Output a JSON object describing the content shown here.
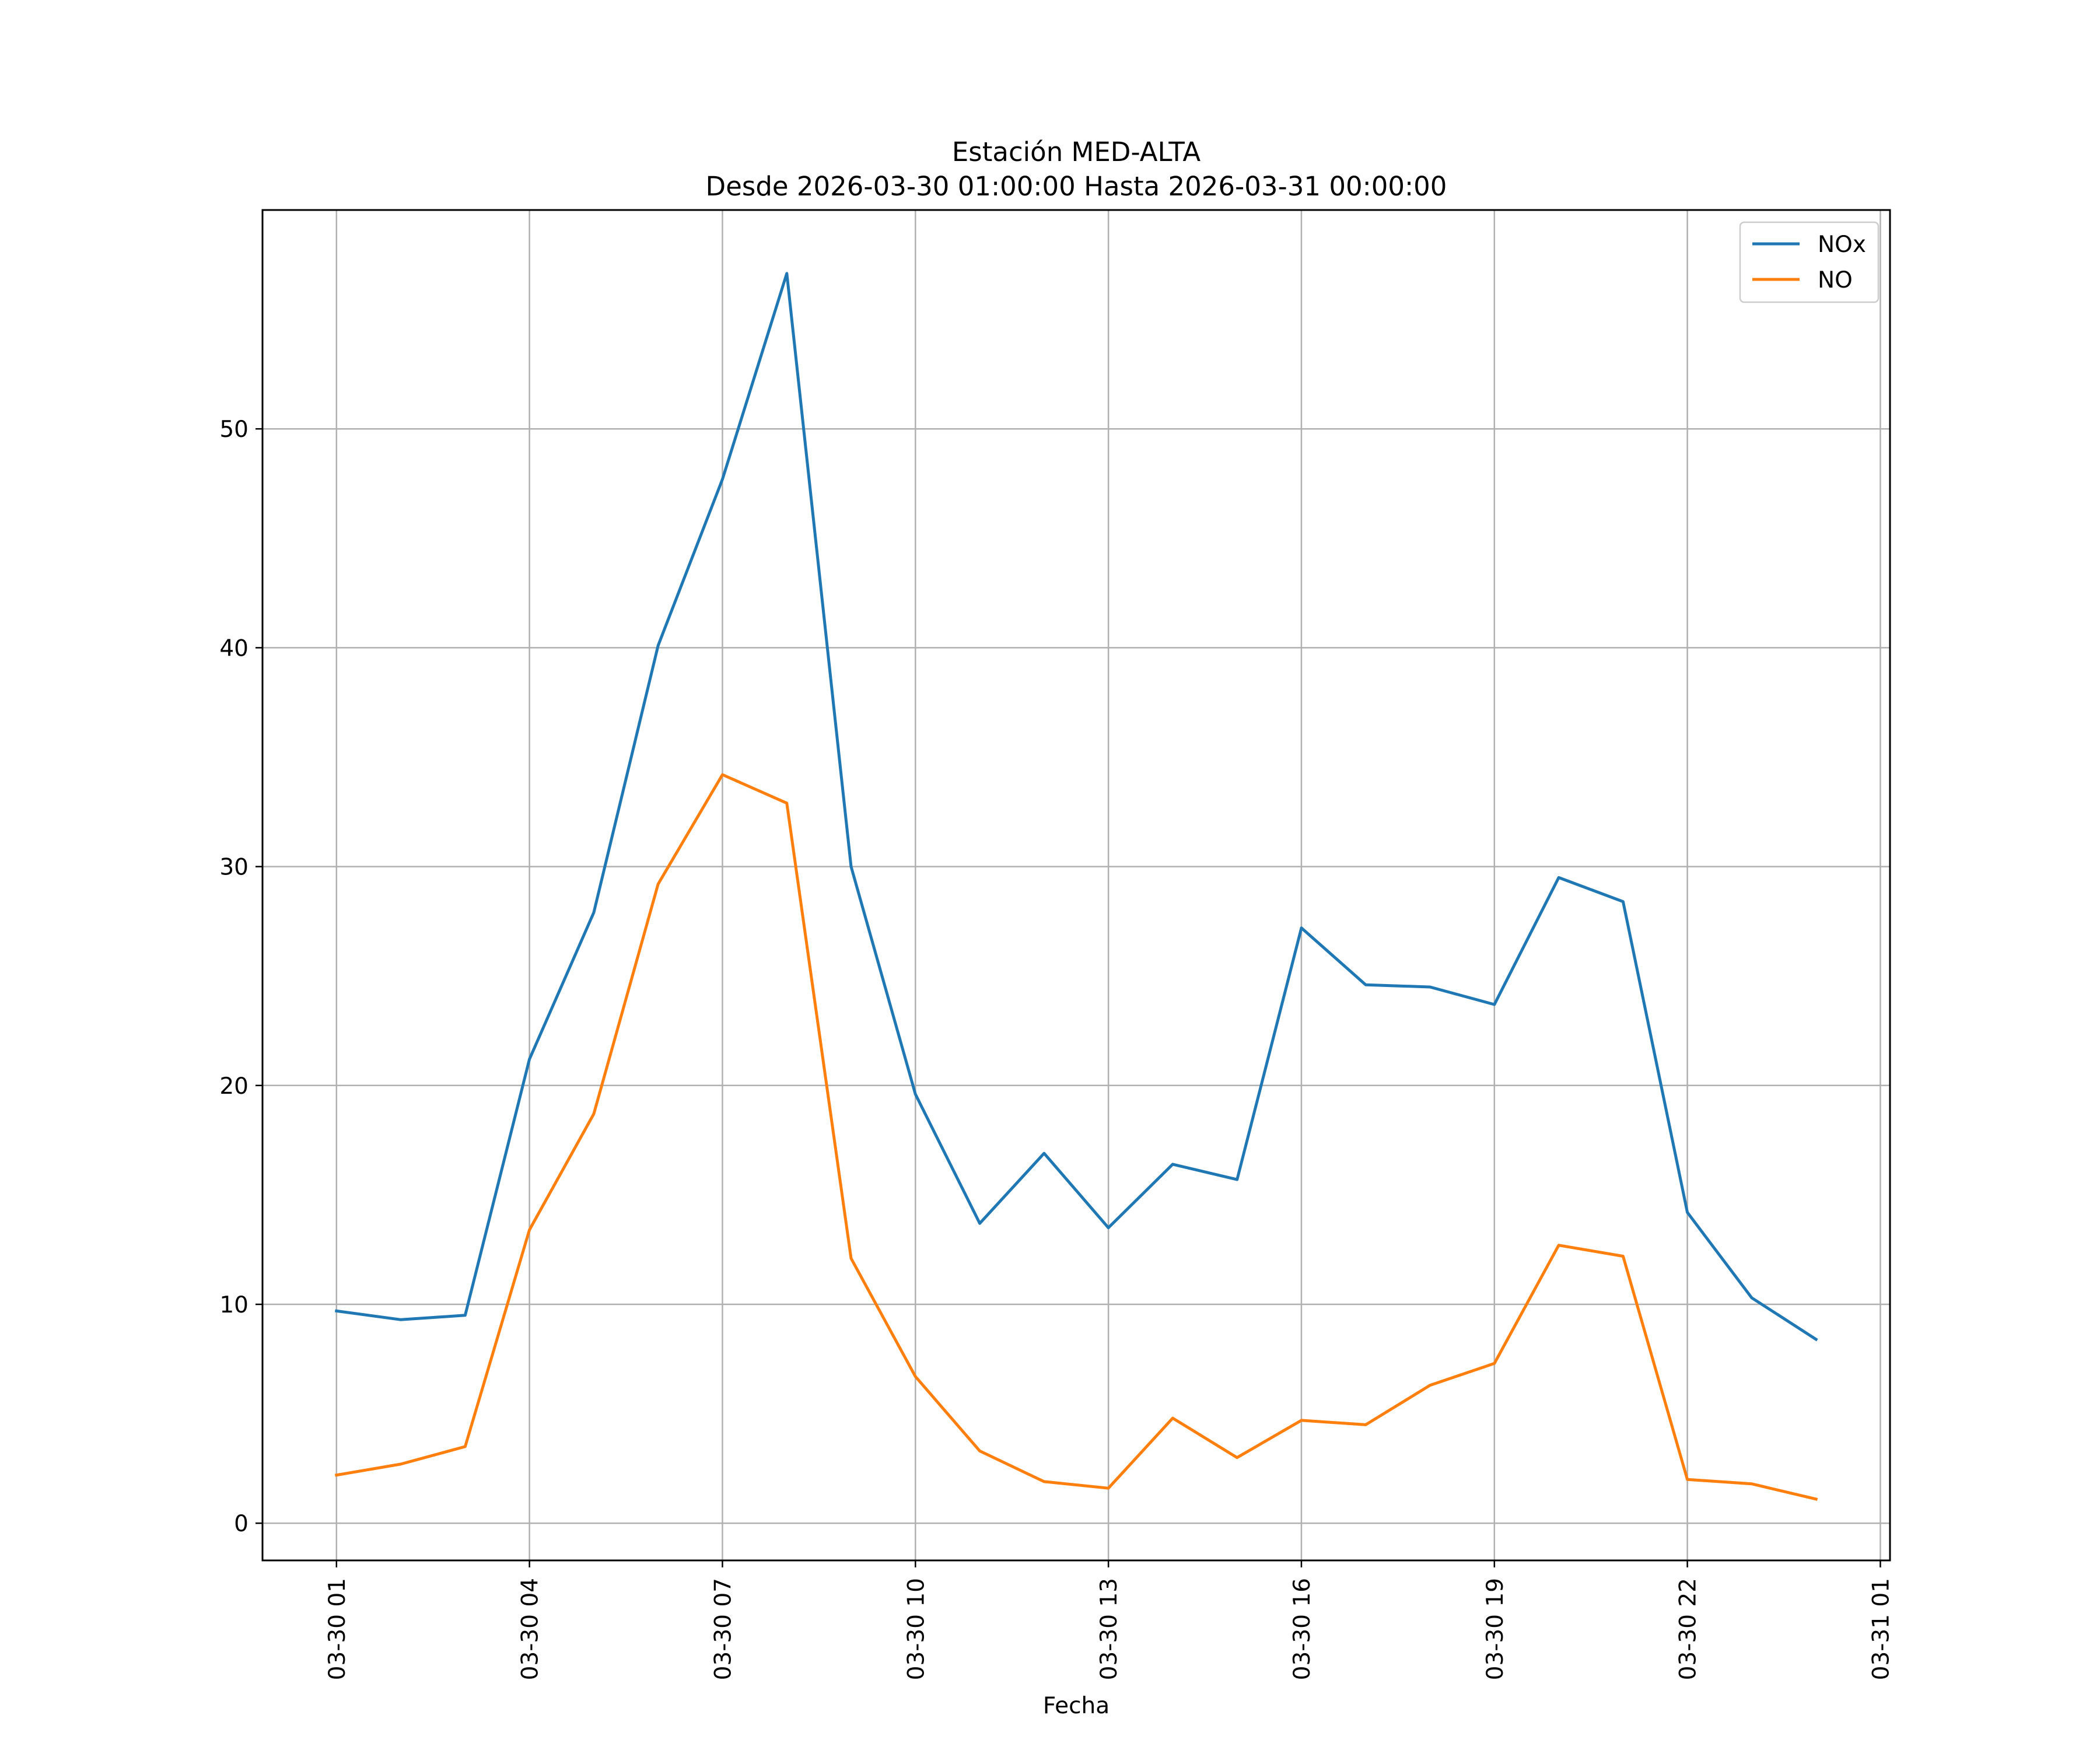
{
  "chart_data": {
    "type": "line",
    "title": "Estación MED-ALTA",
    "subtitle": "Desde 2026-03-30 01:00:00 Hasta 2026-03-31 00:00:00",
    "xlabel": "Fecha",
    "ylabel": "",
    "x": [
      "2026-03-30 01:00",
      "2026-03-30 02:00",
      "2026-03-30 03:00",
      "2026-03-30 04:00",
      "2026-03-30 05:00",
      "2026-03-30 06:00",
      "2026-03-30 07:00",
      "2026-03-30 08:00",
      "2026-03-30 09:00",
      "2026-03-30 10:00",
      "2026-03-30 11:00",
      "2026-03-30 12:00",
      "2026-03-30 13:00",
      "2026-03-30 14:00",
      "2026-03-30 15:00",
      "2026-03-30 16:00",
      "2026-03-30 17:00",
      "2026-03-30 18:00",
      "2026-03-30 19:00",
      "2026-03-30 20:00",
      "2026-03-30 21:00",
      "2026-03-30 22:00",
      "2026-03-30 23:00",
      "2026-03-31 00:00"
    ],
    "series": [
      {
        "name": "NOx",
        "color": "#1f77b4",
        "values": [
          9.7,
          9.3,
          9.5,
          21.2,
          27.9,
          40.1,
          47.7,
          57.1,
          30.0,
          19.6,
          13.7,
          16.9,
          13.5,
          16.4,
          15.7,
          27.2,
          24.6,
          24.5,
          23.7,
          29.5,
          28.4,
          14.2,
          10.3,
          8.4
        ]
      },
      {
        "name": "NO",
        "color": "#ff7f0e",
        "values": [
          2.2,
          2.7,
          3.5,
          13.4,
          18.7,
          29.2,
          34.2,
          32.9,
          12.1,
          6.7,
          3.3,
          1.9,
          1.6,
          4.8,
          3.0,
          4.7,
          4.5,
          6.3,
          7.3,
          12.7,
          12.2,
          2.0,
          1.8,
          1.1
        ]
      }
    ],
    "x_ticks": [
      "03-30 01",
      "03-30 04",
      "03-30 07",
      "03-30 10",
      "03-30 13",
      "03-30 16",
      "03-30 19",
      "03-30 22",
      "03-31 01"
    ],
    "x_tick_values": [
      "2026-03-30 01:00",
      "2026-03-30 04:00",
      "2026-03-30 07:00",
      "2026-03-30 10:00",
      "2026-03-30 13:00",
      "2026-03-30 16:00",
      "2026-03-30 19:00",
      "2026-03-30 22:00",
      "2026-03-31 01:00"
    ],
    "xlim": [
      "2026-03-29 23:51",
      "2026-03-31 01:09"
    ],
    "y_ticks": [
      0,
      10,
      20,
      30,
      40,
      50
    ],
    "ylim": [
      -1.7,
      60.0
    ],
    "grid": true,
    "legend": "top-right"
  }
}
